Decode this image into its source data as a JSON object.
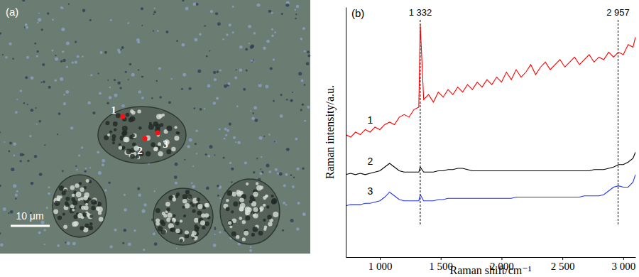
{
  "micrograph": {
    "label": "(a)",
    "points": [
      "1",
      "2",
      "3"
    ],
    "scale_bar": "10 μm"
  },
  "chart_data": {
    "type": "line",
    "title": "(b)",
    "x_label": "Raman shift/cm⁻¹",
    "y_label": "Raman intensity/a.u.",
    "x": [
      720,
      760,
      800,
      840,
      880,
      920,
      960,
      1000,
      1040,
      1080,
      1120,
      1160,
      1200,
      1240,
      1280,
      1320,
      1332,
      1360,
      1400,
      1440,
      1480,
      1520,
      1560,
      1600,
      1640,
      1680,
      1720,
      1760,
      1800,
      1840,
      1880,
      1920,
      1960,
      2000,
      2040,
      2080,
      2120,
      2160,
      2200,
      2240,
      2280,
      2320,
      2360,
      2400,
      2440,
      2480,
      2520,
      2560,
      2600,
      2640,
      2680,
      2720,
      2760,
      2800,
      2840,
      2880,
      2920,
      2960,
      3000,
      3040,
      3080,
      3100
    ],
    "series": [
      {
        "name": "1",
        "color": "#ff0000",
        "values": [
          49,
          48,
          50,
          49,
          51,
          50,
          52,
          51,
          53,
          54,
          53,
          56,
          57,
          56,
          59,
          60,
          93,
          63,
          65,
          62,
          66,
          64,
          67,
          65,
          68,
          66,
          69,
          67,
          70,
          68,
          71,
          69,
          72,
          70,
          74,
          71,
          75,
          72,
          74,
          77,
          73,
          76,
          78,
          75,
          77,
          79,
          76,
          78,
          80,
          77,
          79,
          81,
          78,
          80,
          79,
          82,
          80,
          82,
          81,
          85,
          84,
          88
        ]
      },
      {
        "name": "2",
        "color": "#000000",
        "values": [
          33,
          33.5,
          33,
          33.5,
          33,
          33.5,
          34,
          34.5,
          36,
          37.5,
          36,
          34.5,
          34,
          34,
          34,
          34,
          36,
          34,
          34,
          34,
          34.5,
          34.5,
          35,
          35,
          35.5,
          35.5,
          35,
          34.5,
          34.5,
          34.5,
          34.5,
          34.5,
          34.5,
          34.5,
          34.5,
          34.5,
          34.5,
          34.5,
          34.5,
          34.5,
          34.5,
          34.5,
          34.5,
          34.5,
          34.5,
          34.5,
          34.5,
          34.5,
          34.5,
          34.5,
          34.5,
          34.5,
          35,
          35,
          35,
          35.5,
          36,
          37,
          37,
          38,
          39.5,
          42
        ]
      },
      {
        "name": "3",
        "color": "#2233ee",
        "values": [
          20.5,
          21,
          21,
          21,
          21.5,
          21.5,
          22,
          22.5,
          24,
          26,
          24.5,
          23,
          22.5,
          22.5,
          22.5,
          22.5,
          25,
          22.5,
          22.5,
          22.5,
          23,
          23,
          23.5,
          23.5,
          23.5,
          23.5,
          23.5,
          23.5,
          23.5,
          23.5,
          23.5,
          23.5,
          23.5,
          23.5,
          23.5,
          23.5,
          24,
          24,
          24,
          24,
          24,
          24,
          24,
          24,
          24,
          24,
          24,
          24,
          24,
          24,
          24.5,
          24.5,
          24.5,
          24.5,
          25,
          26.5,
          28,
          28.5,
          28,
          28,
          30,
          33
        ]
      }
    ],
    "annotations": [
      {
        "x": 1332,
        "label": "1 332"
      },
      {
        "x": 2957,
        "label": "2 957"
      }
    ],
    "xlim": [
      720,
      3100
    ],
    "xticks": [
      {
        "value": 1000,
        "label": "1 000"
      },
      {
        "value": 1500,
        "label": "1 500"
      },
      {
        "value": 2000,
        "label": "2 000"
      },
      {
        "value": 2500,
        "label": "2 500"
      },
      {
        "value": 3000,
        "label": "3 000"
      }
    ],
    "ylim": [
      0,
      100
    ],
    "tick_labels": "x",
    "grid": false
  }
}
